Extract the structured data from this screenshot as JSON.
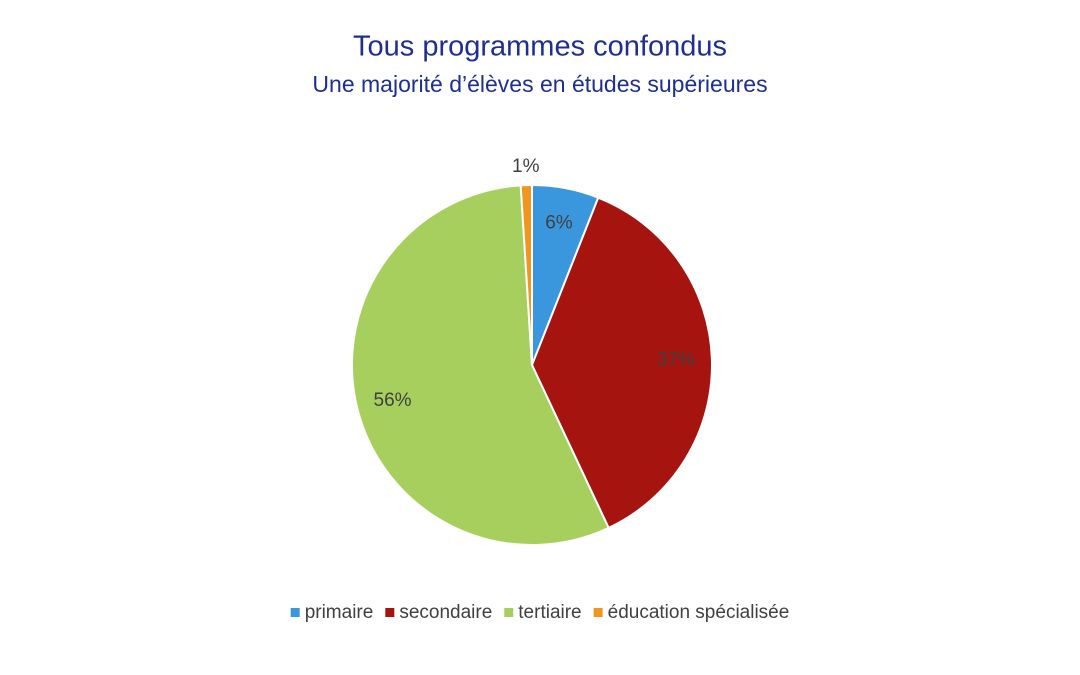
{
  "chart_data": {
    "type": "pie",
    "title": "Tous programmes confondus",
    "subtitle": "Une majorité d’élèves en études supérieures",
    "categories": [
      "primaire",
      "secondaire",
      "tertiaire",
      "éducation spécialisée"
    ],
    "values": [
      6,
      37,
      56,
      1
    ],
    "value_labels": [
      "6%",
      "37%",
      "56%",
      "1%"
    ],
    "colors": [
      "#3a96dd",
      "#a5140e",
      "#a7cf5e",
      "#f0961f"
    ],
    "legend": "bottom"
  }
}
